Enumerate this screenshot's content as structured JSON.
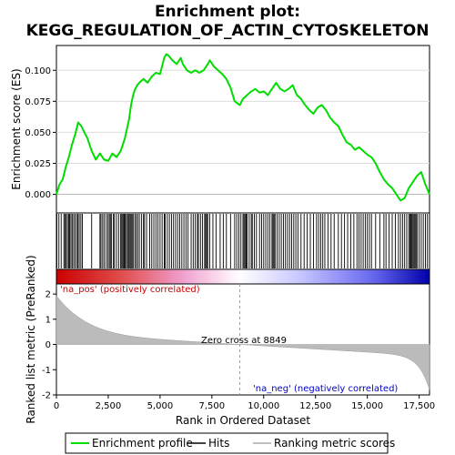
{
  "chart_data": {
    "type": "line",
    "title_line1": "Enrichment plot:",
    "title_line2": "KEGG_REGULATION_OF_ACTIN_CYTOSKELETON",
    "xlabel": "Rank in Ordered Dataset",
    "ylabel_top": "Enrichment score (ES)",
    "ylabel_bottom": "Ranked list metric (PreRanked)",
    "x_range": [
      0,
      18000
    ],
    "x_ticks": [
      0,
      2500,
      5000,
      7500,
      10000,
      12500,
      15000,
      17500
    ],
    "x_tick_labels": [
      "0",
      "2,500",
      "5,000",
      "7,500",
      "10,000",
      "12,500",
      "15,000",
      "17,500"
    ],
    "es_ylim": [
      -0.015,
      0.12
    ],
    "es_ticks": [
      0.0,
      0.025,
      0.05,
      0.075,
      0.1
    ],
    "es_tick_labels": [
      "0.000",
      "0.025",
      "0.050",
      "0.075",
      "0.100"
    ],
    "metric_ylim": [
      -2,
      2.4
    ],
    "metric_ticks": [
      -2,
      -1,
      0,
      1,
      2
    ],
    "metric_tick_labels": [
      "-2",
      "-1",
      "0",
      "1",
      "2"
    ],
    "zero_cross_rank": 8849,
    "zero_cross_label": "Zero cross at 8849",
    "pos_label": "'na_pos' (positively correlated)",
    "neg_label": "'na_neg' (negatively correlated)",
    "series": [
      {
        "name": "Enrichment profile",
        "color": "#00dd00",
        "x": [
          0,
          150,
          300,
          450,
          600,
          750,
          900,
          1050,
          1200,
          1350,
          1500,
          1700,
          1900,
          2100,
          2300,
          2500,
          2700,
          2900,
          3100,
          3300,
          3500,
          3600,
          3700,
          3800,
          3900,
          4000,
          4200,
          4400,
          4600,
          4800,
          5000,
          5200,
          5300,
          5400,
          5600,
          5800,
          6000,
          6100,
          6300,
          6500,
          6700,
          6900,
          7100,
          7300,
          7400,
          7600,
          7800,
          8000,
          8200,
          8400,
          8600,
          8849,
          9000,
          9200,
          9400,
          9600,
          9800,
          10000,
          10200,
          10400,
          10600,
          10800,
          11000,
          11200,
          11400,
          11600,
          11800,
          12000,
          12200,
          12400,
          12600,
          12800,
          13000,
          13200,
          13400,
          13600,
          13800,
          14000,
          14200,
          14400,
          14600,
          14800,
          15000,
          15200,
          15400,
          15600,
          15800,
          16000,
          16200,
          16400,
          16600,
          16800,
          17000,
          17200,
          17400,
          17600,
          17800,
          18000
        ],
        "y": [
          0.0,
          0.008,
          0.012,
          0.022,
          0.03,
          0.04,
          0.048,
          0.058,
          0.055,
          0.05,
          0.045,
          0.035,
          0.028,
          0.033,
          0.028,
          0.027,
          0.033,
          0.03,
          0.035,
          0.045,
          0.06,
          0.072,
          0.08,
          0.085,
          0.088,
          0.09,
          0.093,
          0.09,
          0.095,
          0.098,
          0.097,
          0.11,
          0.113,
          0.112,
          0.108,
          0.105,
          0.11,
          0.105,
          0.1,
          0.098,
          0.1,
          0.098,
          0.1,
          0.105,
          0.108,
          0.103,
          0.1,
          0.097,
          0.093,
          0.086,
          0.075,
          0.072,
          0.077,
          0.08,
          0.083,
          0.085,
          0.082,
          0.083,
          0.08,
          0.085,
          0.09,
          0.085,
          0.083,
          0.085,
          0.088,
          0.08,
          0.077,
          0.072,
          0.068,
          0.065,
          0.07,
          0.072,
          0.068,
          0.062,
          0.058,
          0.055,
          0.048,
          0.042,
          0.04,
          0.036,
          0.038,
          0.035,
          0.032,
          0.03,
          0.025,
          0.018,
          0.012,
          0.008,
          0.005,
          0.0,
          -0.005,
          -0.003,
          0.005,
          0.01,
          0.015,
          0.018,
          0.008,
          0.0
        ]
      }
    ],
    "hits": [
      20,
      120,
      230,
      360,
      410,
      470,
      530,
      590,
      640,
      700,
      760,
      830,
      900,
      980,
      1040,
      1100,
      1180,
      1250,
      1700,
      2100,
      2150,
      2230,
      2300,
      2400,
      2480,
      2550,
      2600,
      2650,
      2750,
      2800,
      2900,
      3000,
      3100,
      3150,
      3200,
      3250,
      3280,
      3330,
      3380,
      3450,
      3500,
      3550,
      3600,
      3650,
      3700,
      3780,
      3850,
      3920,
      4000,
      4100,
      4200,
      4250,
      4350,
      4500,
      4600,
      4700,
      4800,
      4900,
      5000,
      5100,
      5200,
      5250,
      5350,
      5450,
      5550,
      5650,
      5750,
      5850,
      5950,
      6050,
      6150,
      6250,
      6350,
      6500,
      6600,
      6700,
      6800,
      6850,
      6950,
      7050,
      7150,
      7200,
      7250,
      7300,
      7400,
      7550,
      7700,
      7900,
      8050,
      8200,
      8400,
      8600,
      8700,
      8800,
      8900,
      9000,
      9050,
      9100,
      9150,
      9200,
      9300,
      9400,
      9450,
      9550,
      9650,
      9800,
      9900,
      10000,
      10100,
      10200,
      10300,
      10400,
      10450,
      10500,
      10550,
      10650,
      10750,
      10850,
      10950,
      11050,
      11150,
      11250,
      11350,
      11450,
      11550,
      11650,
      11800,
      11950,
      12100,
      12250,
      12400,
      12550,
      12650,
      12750,
      12850,
      12950,
      13100,
      13250,
      13400,
      13600,
      13750,
      13900,
      14050,
      14200,
      14350,
      14500,
      14600,
      14700,
      14800,
      14900,
      15000,
      15100,
      15200,
      15400,
      15600,
      15800,
      15900,
      16050,
      16200,
      16350,
      16500,
      16600,
      16700,
      16800,
      16900,
      17000,
      17050,
      17100,
      17150,
      17200,
      17250,
      17300,
      17350,
      17400,
      17500,
      17600,
      17700,
      17800,
      17900
    ]
  },
  "legend": {
    "items": [
      {
        "label": "Enrichment profile",
        "color": "#00dd00",
        "style": "line"
      },
      {
        "label": "Hits",
        "color": "#000000",
        "style": "line"
      },
      {
        "label": "Ranking metric scores",
        "color": "#aaaaaa",
        "style": "line"
      }
    ]
  }
}
